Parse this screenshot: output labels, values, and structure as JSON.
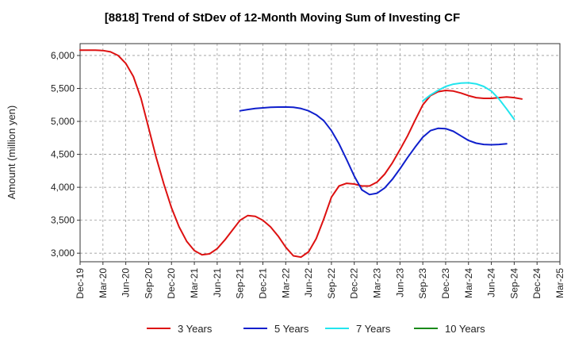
{
  "chart_data": {
    "type": "line",
    "title": "[8818]  Trend of StDev of 12-Month Moving Sum of Investing CF",
    "ylabel": "Amount (million yen)",
    "xlabel": "",
    "ylim": [
      2870,
      6180
    ],
    "yticks": [
      3000,
      3500,
      4000,
      4500,
      5000,
      5500,
      6000
    ],
    "ytick_labels": [
      "3,000",
      "3,500",
      "4,000",
      "4,500",
      "5,000",
      "5,500",
      "6,000"
    ],
    "x_tick_labels": [
      "Dec-19",
      "Mar-20",
      "Jun-20",
      "Sep-20",
      "Dec-20",
      "Mar-21",
      "Jun-21",
      "Sep-21",
      "Dec-21",
      "Mar-22",
      "Jun-22",
      "Sep-22",
      "Dec-22",
      "Mar-23",
      "Jun-23",
      "Sep-23",
      "Dec-23",
      "Mar-24",
      "Jun-24",
      "Sep-24",
      "Dec-24",
      "Mar-25"
    ],
    "grid": true,
    "legend_position": "bottom",
    "series": [
      {
        "name": "3 Years",
        "color": "#dd1111",
        "start_month": 0,
        "values": [
          6080,
          6080,
          6080,
          6075,
          6055,
          6000,
          5880,
          5680,
          5350,
          4900,
          4450,
          4050,
          3690,
          3400,
          3180,
          3040,
          2975,
          2990,
          3070,
          3200,
          3350,
          3500,
          3570,
          3560,
          3500,
          3400,
          3260,
          3090,
          2960,
          2940,
          3020,
          3220,
          3520,
          3850,
          4020,
          4060,
          4050,
          4020,
          4020,
          4080,
          4200,
          4370,
          4570,
          4780,
          5020,
          5250,
          5390,
          5450,
          5470,
          5460,
          5430,
          5390,
          5360,
          5350,
          5350,
          5360,
          5370,
          5360,
          5340
        ]
      },
      {
        "name": "5 Years",
        "color": "#0f1fcc",
        "start_month": 21,
        "values": [
          5160,
          5180,
          5195,
          5205,
          5213,
          5217,
          5218,
          5213,
          5195,
          5160,
          5100,
          5010,
          4860,
          4660,
          4420,
          4170,
          3960,
          3890,
          3910,
          3990,
          4120,
          4280,
          4450,
          4610,
          4760,
          4860,
          4895,
          4890,
          4850,
          4780,
          4710,
          4670,
          4650,
          4645,
          4650,
          4660
        ]
      },
      {
        "name": "7 Years",
        "color": "#22e5ee",
        "start_month": 45,
        "values": [
          5310,
          5400,
          5470,
          5530,
          5565,
          5580,
          5585,
          5570,
          5530,
          5460,
          5340,
          5190,
          5030
        ]
      },
      {
        "name": "10 Years",
        "color": "#1a8a1a",
        "start_month": 0,
        "values": []
      }
    ]
  }
}
